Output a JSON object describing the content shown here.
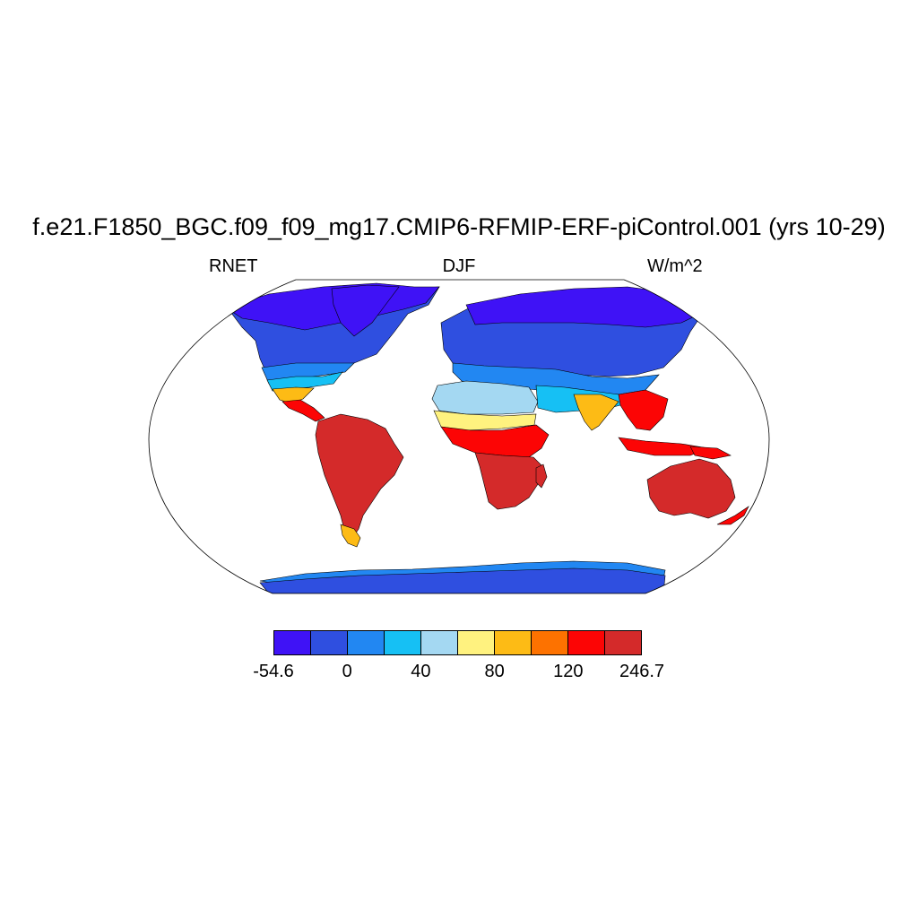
{
  "title": "f.e21.F1850_BGC.f09_f09_mg17.CMIP6-RFMIP-ERF-piControl.001 (yrs 10-29)",
  "subtitle_left": "RNET",
  "subtitle_center": "DJF",
  "subtitle_right": "W/m^2",
  "colorbar": {
    "colors": [
      "#3f12f6",
      "#2f4fe0",
      "#2287f2",
      "#16c0f4",
      "#a4d8f2",
      "#fff27f",
      "#fdbb15",
      "#fd7200",
      "#fc0505",
      "#d42a2a"
    ],
    "labels": [
      "-54.6",
      "0",
      "40",
      "80",
      "120",
      "246.7"
    ]
  },
  "map": {
    "projection": "Robinson",
    "regions": [
      {
        "name": "north-america-arctic",
        "color": "#3f12f6"
      },
      {
        "name": "north-america-mid",
        "color": "#2f4fe0"
      },
      {
        "name": "north-america-south",
        "color": "#2287f2"
      },
      {
        "name": "gulf-coast",
        "color": "#16c0f4"
      },
      {
        "name": "mexico",
        "color": "#fdbb15"
      },
      {
        "name": "central-america",
        "color": "#fc0505"
      },
      {
        "name": "greenland",
        "color": "#3f12f6"
      },
      {
        "name": "south-america",
        "color": "#d42a2a"
      },
      {
        "name": "patagonia",
        "color": "#fdbb15"
      },
      {
        "name": "eurasia-north",
        "color": "#3f12f6"
      },
      {
        "name": "eurasia-mid",
        "color": "#2f4fe0"
      },
      {
        "name": "europe-south",
        "color": "#2287f2"
      },
      {
        "name": "north-africa",
        "color": "#a4d8f2"
      },
      {
        "name": "middle-east",
        "color": "#16c0f4"
      },
      {
        "name": "sahel",
        "color": "#fff27f"
      },
      {
        "name": "africa-equatorial",
        "color": "#fc0505"
      },
      {
        "name": "africa-south",
        "color": "#d42a2a"
      },
      {
        "name": "madagascar",
        "color": "#d42a2a"
      },
      {
        "name": "india",
        "color": "#fdbb15"
      },
      {
        "name": "southeast-asia",
        "color": "#fc0505"
      },
      {
        "name": "indonesia",
        "color": "#fc0505"
      },
      {
        "name": "new-guinea",
        "color": "#fc0505"
      },
      {
        "name": "australia",
        "color": "#d42a2a"
      },
      {
        "name": "new-zealand",
        "color": "#fc0505"
      },
      {
        "name": "antarctica",
        "color": "#2f4fe0"
      },
      {
        "name": "antarctic-coast",
        "color": "#2287f2"
      }
    ]
  }
}
